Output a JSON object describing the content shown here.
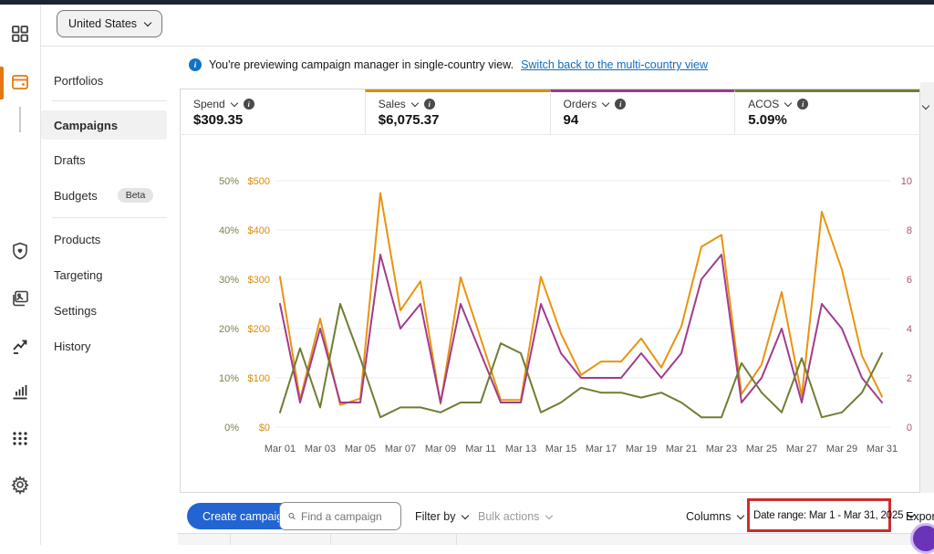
{
  "top": {
    "country_selector": "United States"
  },
  "rail": {
    "icons": [
      "dashboard-grid-icon",
      "campaign-manager-wallet-icon",
      "brand-shield-icon",
      "creative-assets-icon",
      "insights-trend-icon",
      "reports-bar-chart-icon",
      "all-apps-grid-icon",
      "settings-gear-icon"
    ]
  },
  "sidebar": {
    "items_top": [
      {
        "label": "Portfolios",
        "active": false
      },
      {
        "label": "Campaigns",
        "active": true
      },
      {
        "label": "Drafts",
        "active": false
      },
      {
        "label": "Budgets",
        "active": false,
        "badge": "Beta"
      }
    ],
    "items_bottom": [
      {
        "label": "Products"
      },
      {
        "label": "Targeting"
      },
      {
        "label": "Settings"
      },
      {
        "label": "History"
      }
    ]
  },
  "banner": {
    "text": "You're previewing campaign manager in single-country view.",
    "link": "Switch back to the multi-country view"
  },
  "metrics": {
    "cards": [
      {
        "label": "Spend",
        "value": "$309.35",
        "accent": ""
      },
      {
        "label": "Sales",
        "value": "$6,075.37",
        "accent": "#dd8a0e"
      },
      {
        "label": "Orders",
        "value": "94",
        "accent": "#9c3a8c"
      },
      {
        "label": "ACOS",
        "value": "5.09%",
        "accent": "#6f7d33"
      }
    ]
  },
  "chart_data": {
    "type": "line",
    "x": [
      "Mar 01",
      "Mar 02",
      "Mar 03",
      "Mar 04",
      "Mar 05",
      "Mar 06",
      "Mar 07",
      "Mar 08",
      "Mar 09",
      "Mar 10",
      "Mar 11",
      "Mar 12",
      "Mar 13",
      "Mar 14",
      "Mar 15",
      "Mar 16",
      "Mar 17",
      "Mar 18",
      "Mar 19",
      "Mar 20",
      "Mar 21",
      "Mar 22",
      "Mar 23",
      "Mar 24",
      "Mar 25",
      "Mar 26",
      "Mar 27",
      "Mar 28",
      "Mar 29",
      "Mar 30",
      "Mar 31"
    ],
    "x_ticks_shown_every": 2,
    "grid": true,
    "series": [
      {
        "name": "Sales",
        "axis": "dollars",
        "max": 500,
        "color": "#e8940f",
        "values": [
          305,
          56,
          220,
          45,
          58,
          475,
          237,
          296,
          47,
          304,
          180,
          55,
          55,
          305,
          190,
          106,
          133,
          133,
          180,
          121,
          204,
          366,
          390,
          67,
          127,
          274,
          63,
          437,
          320,
          145,
          62
        ]
      },
      {
        "name": "Orders",
        "axis": "count",
        "max": 10,
        "color": "#a03c8c",
        "values": [
          5,
          1,
          4,
          1,
          1,
          7,
          4,
          5,
          1,
          5,
          3,
          1,
          1,
          5,
          3,
          2,
          2,
          2,
          3,
          2,
          3,
          6,
          7,
          1,
          2,
          4,
          1,
          5,
          4,
          2,
          1
        ]
      },
      {
        "name": "ACOS",
        "axis": "percent",
        "max": 50,
        "color": "#6f7d33",
        "values": [
          3,
          16,
          4,
          25,
          14,
          2,
          4,
          4,
          3,
          5,
          5,
          17,
          15,
          3,
          5,
          8,
          7,
          7,
          6,
          7,
          5,
          2,
          2,
          13,
          7,
          3,
          14,
          2,
          3,
          7,
          15
        ]
      }
    ],
    "axes": {
      "left_percent": {
        "ticks": [
          "0%",
          "10%",
          "20%",
          "30%",
          "40%",
          "50%"
        ],
        "range": [
          0,
          50
        ],
        "color": "#7d8050"
      },
      "left_dollars": {
        "ticks": [
          "$0",
          "$100",
          "$200",
          "$300",
          "$400",
          "$500"
        ],
        "range": [
          0,
          500
        ],
        "color": "#d98a0e"
      },
      "right_count": {
        "ticks": [
          "0",
          "2",
          "4",
          "6",
          "8",
          "10"
        ],
        "range": [
          0,
          10
        ],
        "color": "#a25670"
      }
    }
  },
  "toolbar": {
    "create_label": "Create campaign",
    "search_placeholder": "Find a campaign",
    "filter_label": "Filter by",
    "bulk_label": "Bulk actions",
    "columns_label": "Columns",
    "date_range_label": "Date range: Mar 1 - Mar 31, 2025",
    "export_label": "Export"
  }
}
